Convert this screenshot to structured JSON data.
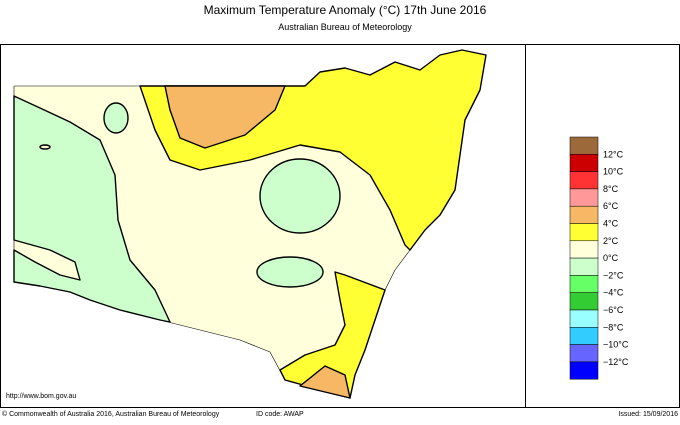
{
  "header": {
    "title": "Maximum Temperature Anomaly (°C)  17th June 2016",
    "subtitle": "Australian Bureau of Meteorology"
  },
  "legend": {
    "colors": [
      "#9c6a3a",
      "#cc0000",
      "#ff3333",
      "#ff9999",
      "#f6b865",
      "#ffff33",
      "#ffffdc",
      "#ccffcc",
      "#66ff66",
      "#33cc33",
      "#99ffff",
      "#33ccff",
      "#6666ff",
      "#0000ff"
    ],
    "labels": [
      "12°C",
      "10°C",
      "8°C",
      "6°C",
      "4°C",
      "2°C",
      "0°C",
      "−2°C",
      "−4°C",
      "−6°C",
      "−8°C",
      "−10°C",
      "−12°C"
    ]
  },
  "footer": {
    "url": "http://www.bom.gov.au",
    "copyright": "© Commonwealth of Australia 2016, Australian Bureau of Meteorology",
    "id_code": "ID code: AWAP",
    "issued": "Issued: 15/09/2016"
  }
}
